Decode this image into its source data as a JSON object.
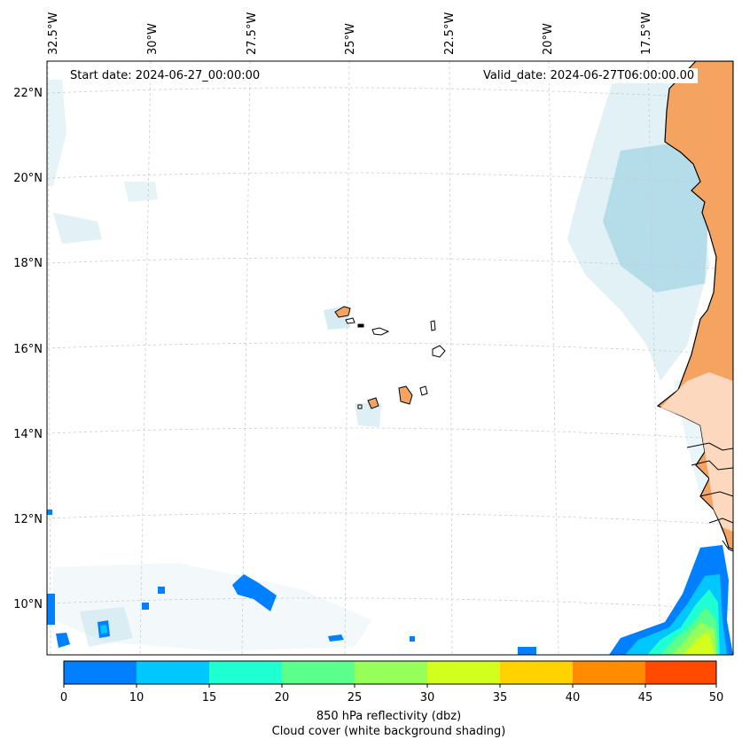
{
  "map": {
    "start_date_text": "Start date: 2024-06-27_00:00:00",
    "valid_date_text": "Valid_date: 2024-06-27T06:00:00.00",
    "lon_labels": [
      "32.5°W",
      "30°W",
      "27.5°W",
      "25°W",
      "22.5°W",
      "20°W",
      "17.5°W"
    ],
    "lat_labels": [
      "22°N",
      "20°N",
      "18°N",
      "16°N",
      "14°N",
      "12°N",
      "10°N"
    ],
    "land_color": "#f4a460",
    "cloud_color": "#add8e6",
    "colorbar": {
      "ticks": [
        "0",
        "10",
        "15",
        "20",
        "25",
        "30",
        "35",
        "40",
        "45",
        "50"
      ],
      "colors": [
        "#0080ff",
        "#00c8ff",
        "#1effd2",
        "#5aff8c",
        "#96ff5a",
        "#d2ff1e",
        "#ffd200",
        "#ff8c00",
        "#ff4a00"
      ],
      "label_line1": "850 hPa reflectivity (dbz)",
      "label_line2": "Cloud cover (white background shading)"
    }
  }
}
